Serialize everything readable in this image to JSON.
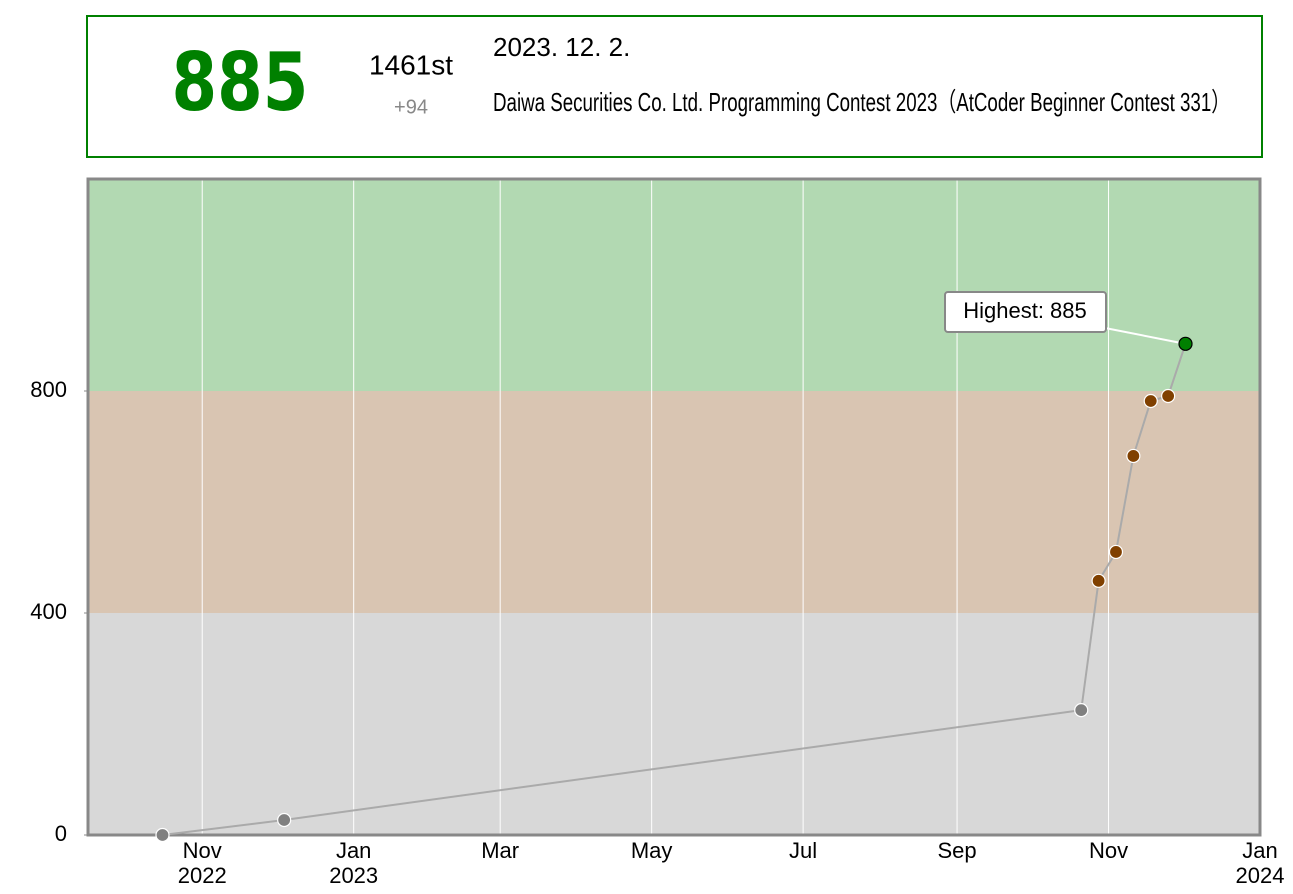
{
  "header": {
    "rating": "885",
    "rank": "1461st",
    "diff": "+94",
    "date": "2023. 12. 2.",
    "contest": "Daiwa Securities Co. Ltd. Programming Contest 2023（AtCoder Beginner Contest 331）"
  },
  "chart_data": {
    "type": "line",
    "x": [
      "2022-10-16",
      "2022-12-04",
      "2023-10-21",
      "2023-10-28",
      "2023-11-04",
      "2023-11-11",
      "2023-11-18",
      "2023-11-25",
      "2023-12-02"
    ],
    "values": [
      0,
      27,
      225,
      458,
      510,
      683,
      782,
      791,
      885
    ],
    "line_color": "#aaaaaa",
    "highest_color": "#008000",
    "xlim": [
      "2022-09-16",
      "2024-01-01"
    ],
    "xticks": [
      {
        "value": "2022-11-01",
        "label": [
          "Nov",
          "2022"
        ]
      },
      {
        "value": "2023-01-01",
        "label": [
          "Jan",
          "2023"
        ]
      },
      {
        "value": "2023-03-01",
        "label": [
          "Mar"
        ]
      },
      {
        "value": "2023-05-01",
        "label": [
          "May"
        ]
      },
      {
        "value": "2023-07-01",
        "label": [
          "Jul"
        ]
      },
      {
        "value": "2023-09-01",
        "label": [
          "Sep"
        ]
      },
      {
        "value": "2023-11-01",
        "label": [
          "Nov"
        ]
      },
      {
        "value": "2024-01-01",
        "label": [
          "Jan",
          "2024"
        ]
      }
    ],
    "ylim": [
      0,
      1182
    ],
    "yticks": [
      0,
      400,
      800
    ],
    "grid": true,
    "bands": [
      {
        "from": 0,
        "to": 400,
        "color": "#d8d8d8",
        "point": "#808080"
      },
      {
        "from": 400,
        "to": 800,
        "color": "#d9c5b2",
        "point": "#804000"
      },
      {
        "from": 800,
        "to": 1200,
        "color": "#b2d9b2",
        "point": "#008000"
      }
    ],
    "annotation": {
      "text": "Highest: 885",
      "index": 8
    }
  }
}
